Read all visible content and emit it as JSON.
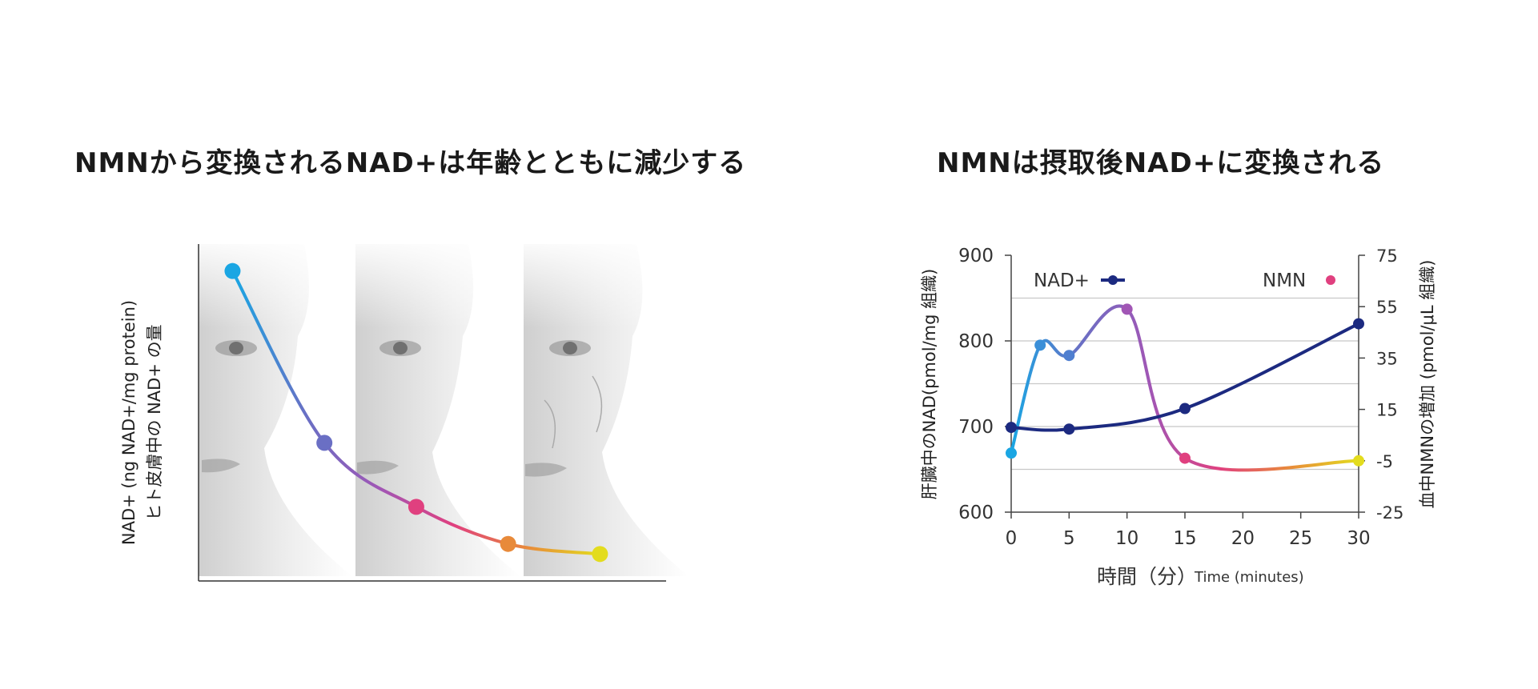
{
  "left": {
    "title": "NMNから変換されるNAD+は年齢とともに減少する",
    "ylabel_line1": "NAD+ (ng NAD+/mg protein)",
    "ylabel_line2": "ヒト皮膚中の NAD+ の量"
  },
  "right": {
    "title": "NMNは摂取後NAD+に変換される",
    "ylabel_left": "肝臓中のNAD(pmol/mg 組織)",
    "ylabel_right": "血中NMNの増加 (pmol/μL 組織)",
    "xlabel_jp": "時間（分）",
    "xlabel_en": "Time (minutes)"
  },
  "colors": {
    "nad": "#1c2a80",
    "grid": "#c8c8c8",
    "nmn_gradient": [
      "#1aa6e3",
      "#6a6fc4",
      "#a156b5",
      "#e0407f",
      "#e88a3a",
      "#e3dc1e"
    ]
  },
  "chart_data": [
    {
      "type": "line",
      "title": "NMNから変換されるNAD+は年齢とともに減少する",
      "ylabel": "NAD+ (ng NAD+/mg protein) ヒト皮膚中の NAD+ の量",
      "xlabel": "",
      "note": "no tick labels shown; relative values",
      "points": [
        {
          "x": 0,
          "y": 92,
          "color": "#1aa6e3"
        },
        {
          "x": 1,
          "y": 41,
          "color": "#6a6fc4"
        },
        {
          "x": 2,
          "y": 22,
          "color": "#e0407f"
        },
        {
          "x": 3,
          "y": 11,
          "color": "#e88a3a"
        },
        {
          "x": 4,
          "y": 8,
          "color": "#e3dc1e"
        }
      ],
      "xlim": [
        -0.37,
        4.72
      ],
      "ylim": [
        0,
        100
      ]
    },
    {
      "type": "line",
      "title": "NMNは摂取後NAD+に変換される",
      "xlabel": "時間（分） Time (minutes)",
      "ylabel": "肝臓中のNAD(pmol/mg 組織)",
      "ylabel_right": "血中NMNの増加 (pmol/μL 組織)",
      "xlim": [
        0,
        30
      ],
      "ylim": [
        600,
        900
      ],
      "ylim_right": [
        -25,
        75
      ],
      "x_ticks": [
        0,
        5,
        10,
        15,
        20,
        25,
        30
      ],
      "y_ticks_left": [
        600,
        700,
        800,
        900
      ],
      "y_ticks_right": [
        -25,
        -5,
        15,
        35,
        55,
        75
      ],
      "legend": "top",
      "series": [
        {
          "name": "NAD+",
          "axis": "left",
          "color": "#1c2a80",
          "x": [
            0,
            5,
            15,
            30
          ],
          "y": [
            699,
            697,
            721,
            820
          ]
        },
        {
          "name": "NMN",
          "axis": "right",
          "gradient": true,
          "x": [
            0,
            2.5,
            5,
            10,
            15,
            30
          ],
          "y": [
            -2,
            40,
            36,
            54,
            -4,
            -5
          ],
          "point_colors": [
            "#1aa6e3",
            "#3b8fd8",
            "#4f7fd0",
            "#a156b5",
            "#e0407f",
            "#e3dc1e"
          ]
        }
      ]
    }
  ]
}
